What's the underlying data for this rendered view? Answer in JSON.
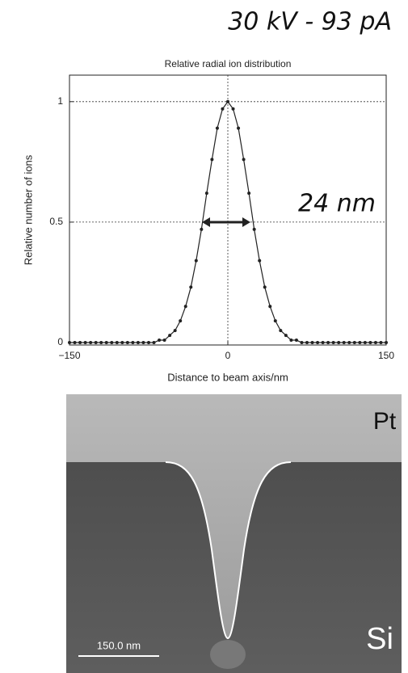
{
  "chart_data": {
    "type": "line",
    "title": "Relative radial ion distribution",
    "x_label": "Distance to beam axis/nm",
    "y_label": "Relative number of ions",
    "annotations": [
      "30 kV -  93 pA",
      "24 nm",
      "Pt",
      "Si",
      "150.0 nm"
    ],
    "x": [
      -150,
      -145,
      -140,
      -135,
      -130,
      -125,
      -120,
      -115,
      -110,
      -105,
      -100,
      -95,
      -90,
      -85,
      -80,
      -75,
      -70,
      -65,
      -60,
      -55,
      -50,
      -45,
      -40,
      -35,
      -30,
      -25,
      -20,
      -15,
      -10,
      -5,
      0,
      5,
      10,
      15,
      20,
      25,
      30,
      35,
      40,
      45,
      50,
      55,
      60,
      65,
      70,
      75,
      80,
      85,
      90,
      95,
      100,
      105,
      110,
      115,
      120,
      125,
      130,
      135,
      140,
      145,
      150
    ],
    "values": [
      0,
      0,
      0,
      0,
      0,
      0,
      0,
      0,
      0,
      0,
      0,
      0,
      0,
      0,
      0,
      0,
      0,
      0.01,
      0.01,
      0.03,
      0.05,
      0.09,
      0.15,
      0.23,
      0.34,
      0.47,
      0.62,
      0.76,
      0.89,
      0.97,
      1,
      0.97,
      0.89,
      0.76,
      0.62,
      0.47,
      0.34,
      0.23,
      0.15,
      0.09,
      0.05,
      0.03,
      0.01,
      0.01,
      0,
      0,
      0,
      0,
      0,
      0,
      0,
      0,
      0,
      0,
      0,
      0,
      0,
      0,
      0,
      0,
      0
    ],
    "color": "#222222",
    "xlim": [
      -150,
      150
    ],
    "ylim": [
      -0.01,
      1.11
    ],
    "xticks": [
      {
        "value": -150,
        "label": "−150"
      },
      0,
      150
    ],
    "yticks": [
      0,
      0.5,
      1
    ],
    "grid": true
  }
}
